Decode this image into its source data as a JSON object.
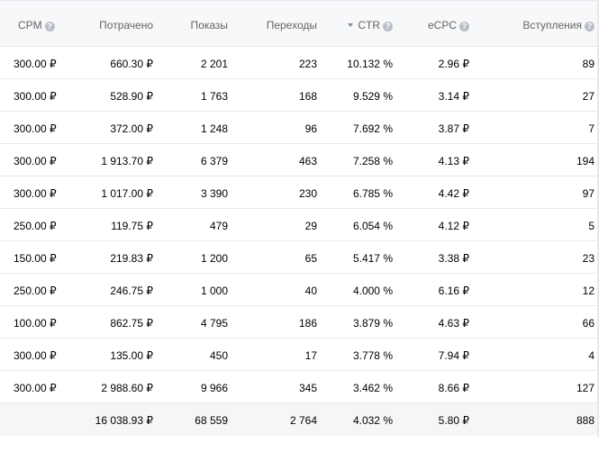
{
  "headers": {
    "cpm": "CPM",
    "spent": "Потрачено",
    "impressions": "Показы",
    "clicks": "Переходы",
    "ctr": "CTR",
    "ecpc": "eCPC",
    "joins": "Вступления"
  },
  "help_icon_glyph": "?",
  "rows": [
    {
      "cpm": "300.00 ₽",
      "spent": "660.30 ₽",
      "impressions": "2 201",
      "clicks": "223",
      "ctr": "10.132 %",
      "ecpc": "2.96 ₽",
      "joins": "89"
    },
    {
      "cpm": "300.00 ₽",
      "spent": "528.90 ₽",
      "impressions": "1 763",
      "clicks": "168",
      "ctr": "9.529 %",
      "ecpc": "3.14 ₽",
      "joins": "27"
    },
    {
      "cpm": "300.00 ₽",
      "spent": "372.00 ₽",
      "impressions": "1 248",
      "clicks": "96",
      "ctr": "7.692 %",
      "ecpc": "3.87 ₽",
      "joins": "7"
    },
    {
      "cpm": "300.00 ₽",
      "spent": "1 913.70 ₽",
      "impressions": "6 379",
      "clicks": "463",
      "ctr": "7.258 %",
      "ecpc": "4.13 ₽",
      "joins": "194"
    },
    {
      "cpm": "300.00 ₽",
      "spent": "1 017.00 ₽",
      "impressions": "3 390",
      "clicks": "230",
      "ctr": "6.785 %",
      "ecpc": "4.42 ₽",
      "joins": "97"
    },
    {
      "cpm": "250.00 ₽",
      "spent": "119.75 ₽",
      "impressions": "479",
      "clicks": "29",
      "ctr": "6.054 %",
      "ecpc": "4.12 ₽",
      "joins": "5"
    },
    {
      "cpm": "150.00 ₽",
      "spent": "219.83 ₽",
      "impressions": "1 200",
      "clicks": "65",
      "ctr": "5.417 %",
      "ecpc": "3.38 ₽",
      "joins": "23"
    },
    {
      "cpm": "250.00 ₽",
      "spent": "246.75 ₽",
      "impressions": "1 000",
      "clicks": "40",
      "ctr": "4.000 %",
      "ecpc": "6.16 ₽",
      "joins": "12"
    },
    {
      "cpm": "100.00 ₽",
      "spent": "862.75 ₽",
      "impressions": "4 795",
      "clicks": "186",
      "ctr": "3.879 %",
      "ecpc": "4.63 ₽",
      "joins": "66"
    },
    {
      "cpm": "300.00 ₽",
      "spent": "135.00 ₽",
      "impressions": "450",
      "clicks": "17",
      "ctr": "3.778 %",
      "ecpc": "7.94 ₽",
      "joins": "4"
    },
    {
      "cpm": "300.00 ₽",
      "spent": "2 988.60 ₽",
      "impressions": "9 966",
      "clicks": "345",
      "ctr": "3.462 %",
      "ecpc": "8.66 ₽",
      "joins": "127"
    }
  ],
  "totals": {
    "cpm": "",
    "spent": "16 038.93 ₽",
    "impressions": "68 559",
    "clicks": "2 764",
    "ctr": "4.032 %",
    "ecpc": "5.80 ₽",
    "joins": "888"
  },
  "sort": {
    "column": "ctr",
    "direction": "desc"
  },
  "colors": {
    "header_bg": "#f7f8fa",
    "header_text": "#656565",
    "row_border": "#e7e8ec",
    "total_bg": "#f5f6f8",
    "help_icon": "#b9bec6"
  }
}
